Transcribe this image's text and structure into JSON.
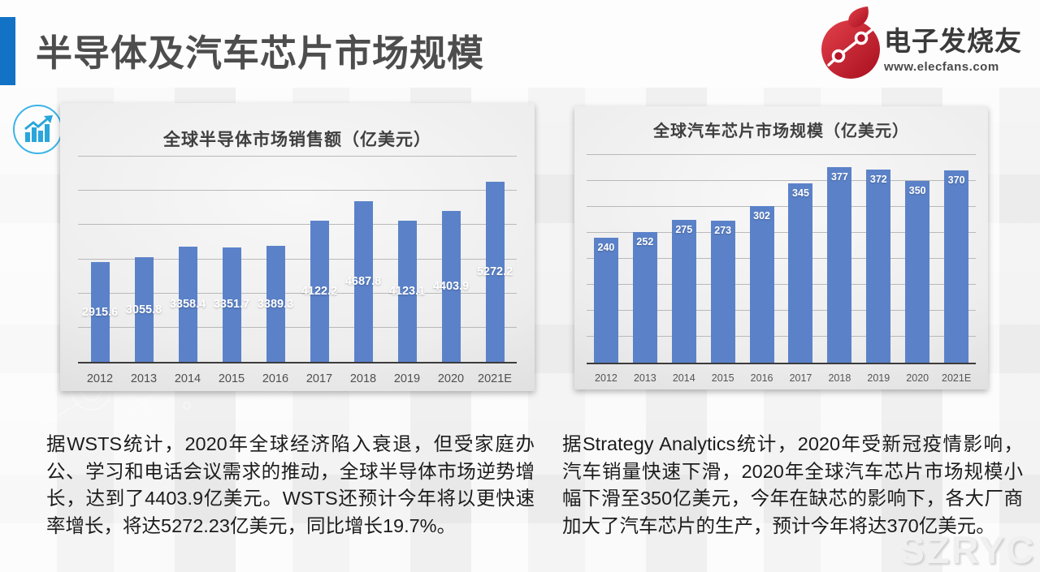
{
  "page_title": "半导体及汽车芯片市场规模",
  "logo": {
    "name": "电子发烧友",
    "url": "www.elecfans.com"
  },
  "chart_data": [
    {
      "type": "bar",
      "title": "全球半导体市场销售额（亿美元）",
      "categories": [
        "2012",
        "2013",
        "2014",
        "2015",
        "2016",
        "2017",
        "2018",
        "2019",
        "2020",
        "2021E"
      ],
      "values": [
        2915.6,
        3055.8,
        3358.4,
        3351.7,
        3389.3,
        4122.2,
        4687.8,
        4123.1,
        4403.9,
        5272.2
      ],
      "ylim": [
        0,
        6000
      ],
      "grid": true,
      "grid_intervals": 6,
      "legend": "none",
      "bar_color": "#5b82c9",
      "label_color": "#ffffff",
      "label_position": "middle",
      "xlabel": "",
      "ylabel": ""
    },
    {
      "type": "bar",
      "title": "全球汽车芯片市场规模（亿美元）",
      "categories": [
        "2012",
        "2013",
        "2014",
        "2015",
        "2016",
        "2017",
        "2018",
        "2019",
        "2020",
        "2021E"
      ],
      "values": [
        240,
        252,
        275,
        273,
        302,
        345,
        377,
        372,
        350,
        370
      ],
      "ylim": [
        0,
        400
      ],
      "grid": true,
      "grid_intervals": 8,
      "legend": "none",
      "bar_color": "#5b82c9",
      "label_color": "#ffffff",
      "label_position": "inside-end",
      "xlabel": "",
      "ylabel": ""
    }
  ],
  "notes": {
    "left": "据WSTS统计，2020年全球经济陷入衰退，但受家庭办公、学习和电话会议需求的推动，全球半导体市场逆势增长，达到了4403.9亿美元。WSTS还预计今年将以更快速率增长，将达5272.23亿美元，同比增长19.7%。",
    "right": "据Strategy Analytics统计，2020年受新冠疫情影响，汽车销量快速下滑，2020年全球汽车芯片市场规模小幅下滑至350亿美元，今年在缺芯的影响下，各大厂商加大了汽车芯片的生产，预计今年将达370亿美元。"
  },
  "watermark": "SZRYC",
  "colors": {
    "accent_bar": "#1272c6",
    "bar": "#5b82c9",
    "logo_red": "#c2192a",
    "trend_icon_blue": "#29a6db",
    "axis_line": "#3c3c3c"
  }
}
